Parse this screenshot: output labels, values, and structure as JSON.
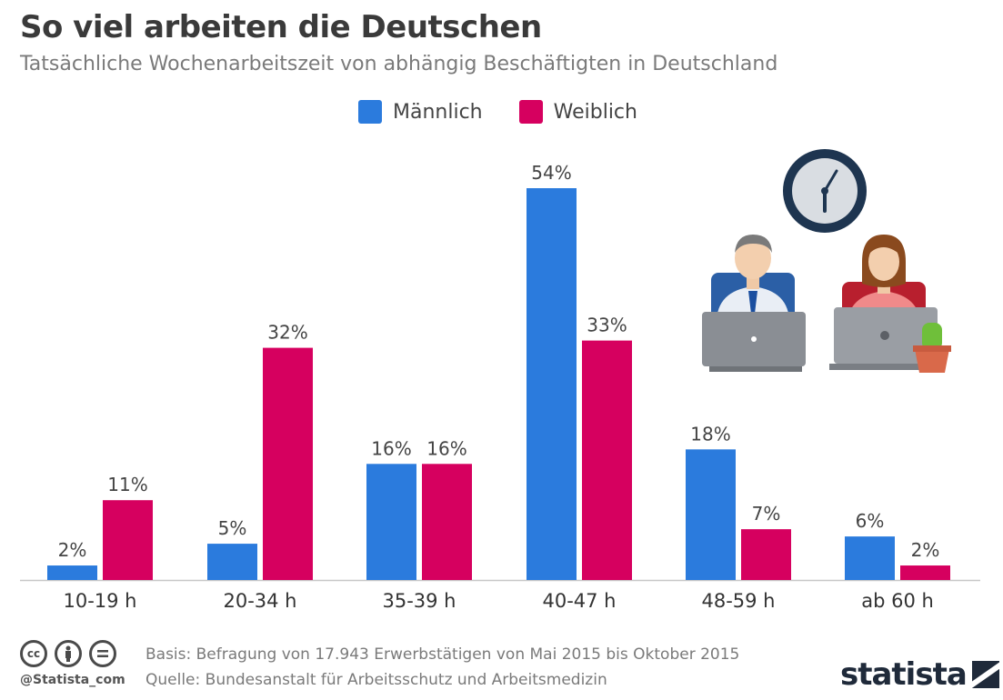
{
  "header": {
    "title": "So viel arbeiten die Deutschen",
    "subtitle": "Tatsächliche Wochenarbeitszeit von abhängig Beschäftigten in Deutschland"
  },
  "legend": [
    {
      "label": "Männlich",
      "color": "#2b7bdd"
    },
    {
      "label": "Weiblich",
      "color": "#d6005f"
    }
  ],
  "chart_data": {
    "type": "bar",
    "categories": [
      "10-19 h",
      "20-34 h",
      "35-39 h",
      "40-47 h",
      "48-59 h",
      "ab 60 h"
    ],
    "series": [
      {
        "name": "Männlich",
        "color": "#2b7bdd",
        "values": [
          2,
          5,
          16,
          54,
          18,
          6
        ],
        "labels": [
          "2%",
          "5%",
          "16%",
          "54%",
          "18%",
          "6%"
        ]
      },
      {
        "name": "Weiblich",
        "color": "#d6005f",
        "values": [
          11,
          32,
          16,
          33,
          7,
          2
        ],
        "labels": [
          "11%",
          "32%",
          "16%",
          "33%",
          "7%",
          "2%"
        ]
      }
    ],
    "ylim": [
      0,
      54
    ],
    "grid": false,
    "legend_position": "top-center"
  },
  "footer": {
    "handle": "@Statista_com",
    "basis": "Basis: Befragung von 17.943 Erwerbstätigen von Mai 2015 bis Oktober 2015",
    "source": "Quelle: Bundesanstalt für Arbeitsschutz und Arbeitsmedizin",
    "brand": "statista",
    "icons": [
      "cc-icon",
      "by-icon",
      "nd-icon"
    ]
  }
}
